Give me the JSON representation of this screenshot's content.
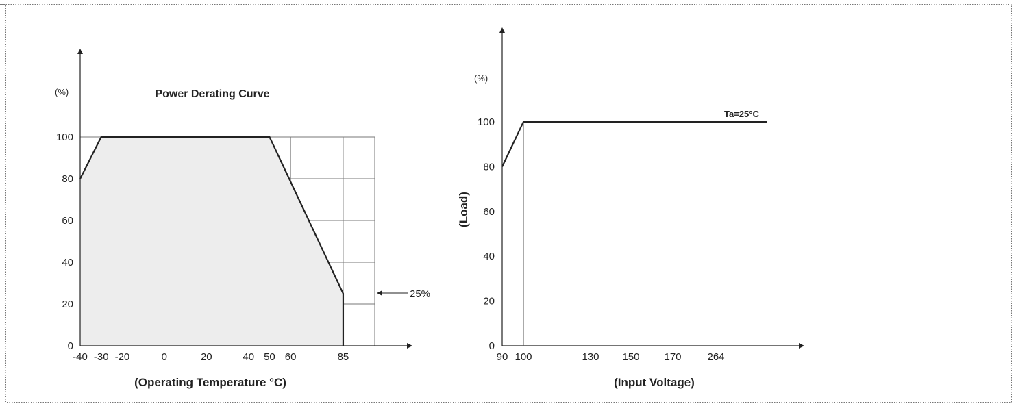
{
  "chart_data": [
    {
      "type": "line",
      "title": "Power Derating Curve",
      "xlabel": "(Operating Temperature °C)",
      "ylabel": "",
      "y_unit": "(%)",
      "xlim": [
        -40,
        100
      ],
      "ylim": [
        0,
        100
      ],
      "x_ticks": [
        -40,
        -30,
        -20,
        0,
        20,
        40,
        50,
        60,
        85
      ],
      "y_ticks": [
        0,
        20,
        40,
        60,
        80,
        100
      ],
      "grid": true,
      "shaded_area": true,
      "series": [
        {
          "x": [
            -40,
            -30,
            50,
            85,
            85
          ],
          "y": [
            80,
            100,
            100,
            25,
            0
          ]
        }
      ],
      "annotations": [
        {
          "text": "25%",
          "y": 25
        }
      ]
    },
    {
      "type": "line",
      "title": "",
      "xlabel": "(Input Voltage)",
      "ylabel": "(Load)",
      "y_unit": "(%)",
      "x_ticks": [
        "90",
        "100",
        "130",
        "150",
        "170",
        "264"
      ],
      "y_ticks": [
        0,
        20,
        40,
        60,
        80,
        100
      ],
      "grid": false,
      "series": [
        {
          "name": "Ta=25°C",
          "x": [
            90,
            100,
            300
          ],
          "y": [
            80,
            100,
            100
          ]
        }
      ]
    }
  ]
}
